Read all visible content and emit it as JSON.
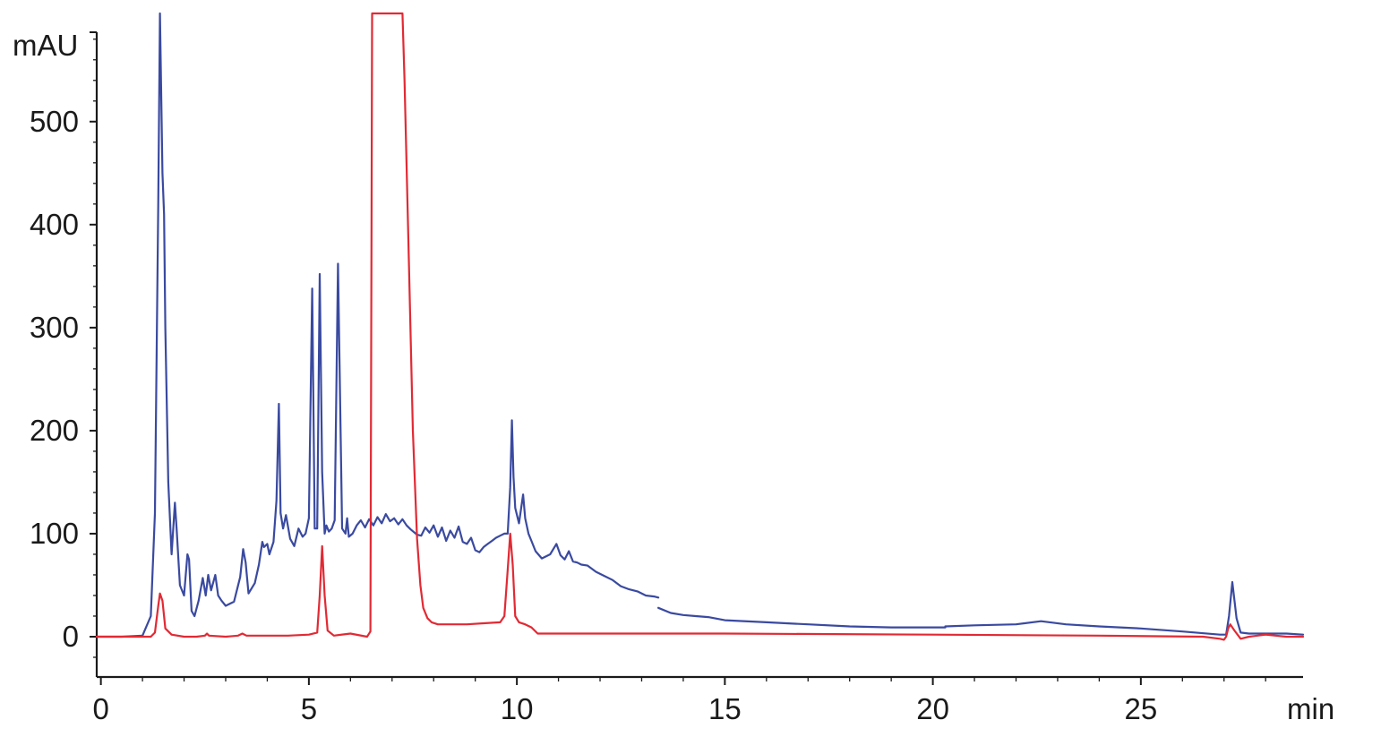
{
  "chart_data": {
    "type": "line",
    "title": "",
    "xlabel": "",
    "ylabel": "",
    "x_unit_label": "min",
    "y_unit_label": "mAU",
    "xlim": [
      -0.1,
      28.9
    ],
    "ylim": [
      -40,
      605
    ],
    "x_ticks": [
      0,
      5,
      10,
      15,
      20,
      25
    ],
    "x_tick_labels": [
      "0",
      "5",
      "10",
      "15",
      "20",
      "25"
    ],
    "y_ticks": [
      0,
      100,
      200,
      300,
      400,
      500
    ],
    "y_tick_labels": [
      "0",
      "100",
      "200",
      "300",
      "400",
      "500"
    ],
    "grid": false,
    "legend": "none",
    "series": [
      {
        "color": "#3a4aa0",
        "segments": [
          {
            "x": [
              -0.1,
              0.5,
              1.0,
              1.2,
              1.3,
              1.38,
              1.42,
              1.48,
              1.52,
              1.55,
              1.62,
              1.7,
              1.78,
              1.82,
              1.9,
              2.0,
              2.08,
              2.12,
              2.18,
              2.25,
              2.35,
              2.45,
              2.52,
              2.58,
              2.65,
              2.75,
              2.82,
              2.9,
              3.0,
              3.2,
              3.35,
              3.42,
              3.48,
              3.55,
              3.7,
              3.8,
              3.88,
              3.92,
              4.0,
              4.05,
              4.15,
              4.22,
              4.28,
              4.32,
              4.38,
              4.45,
              4.55,
              4.65,
              4.75,
              4.85,
              4.92,
              5.0,
              5.08,
              5.14,
              5.2,
              5.26,
              5.32,
              5.38,
              5.42,
              5.48,
              5.55,
              5.62,
              5.7,
              5.8,
              5.88,
              5.92,
              5.96,
              6.05,
              6.15,
              6.25,
              6.35,
              6.45,
              6.55,
              6.65,
              6.75,
              6.85,
              6.95,
              7.05,
              7.15,
              7.25,
              7.35,
              7.45,
              7.6,
              7.7,
              7.8,
              7.9,
              8.0,
              8.1,
              8.2,
              8.3,
              8.4,
              8.5,
              8.6,
              8.7,
              8.8,
              8.9,
              9.0,
              9.1,
              9.2,
              9.3,
              9.4,
              9.5,
              9.6,
              9.7,
              9.78,
              9.84,
              9.88,
              9.92,
              9.96,
              10.05,
              10.15,
              10.2,
              10.28,
              10.35,
              10.45,
              10.6,
              10.8,
              10.95,
              11.05,
              11.15,
              11.25,
              11.35,
              11.45,
              11.55,
              11.7,
              11.9,
              12.1,
              12.3,
              12.5,
              12.7,
              12.9,
              13.1,
              13.3,
              13.4
            ],
            "y": [
              0,
              0,
              1,
              20,
              120,
              420,
              605,
              450,
              410,
              300,
              150,
              80,
              130,
              105,
              50,
              40,
              80,
              75,
              25,
              20,
              35,
              57,
              40,
              60,
              45,
              60,
              40,
              35,
              30,
              34,
              58,
              85,
              72,
              42,
              52,
              70,
              92,
              87,
              90,
              80,
              92,
              132,
              226,
              120,
              105,
              118,
              95,
              88,
              105,
              97,
              100,
              115,
              338,
              105,
              105,
              352,
              160,
              100,
              108,
              102,
              105,
              113,
              362,
              105,
              100,
              115,
              97,
              100,
              108,
              113,
              106,
              114,
              108,
              116,
              110,
              119,
              112,
              115,
              109,
              114,
              108,
              104,
              99,
              98,
              106,
              101,
              108,
              97,
              106,
              93,
              103,
              96,
              107,
              92,
              90,
              96,
              84,
              82,
              87,
              90,
              93,
              96,
              98,
              100,
              100,
              145,
              210,
              155,
              125,
              110,
              138,
              115,
              100,
              93,
              83,
              76,
              80,
              90,
              79,
              75,
              83,
              73,
              72,
              70,
              69,
              63,
              59,
              55,
              49,
              46,
              44,
              40,
              39,
              38
            ]
          },
          {
            "x": [
              13.4,
              13.7,
              14.0,
              14.3,
              14.6,
              15.0,
              16.0,
              17.0,
              18.0,
              19.0,
              20.3
            ],
            "y": [
              28,
              23,
              21,
              20,
              19,
              16,
              14,
              12,
              10,
              9,
              9
            ]
          },
          {
            "x": [
              20.3,
              21.0,
              22.0,
              22.6,
              23.2,
              24.0,
              25.0,
              26.0,
              26.9,
              27.05,
              27.12,
              27.2,
              27.3,
              27.4,
              27.6,
              28.0,
              28.5,
              28.9
            ],
            "y": [
              10,
              11,
              12,
              15,
              12,
              10,
              8,
              5,
              2,
              2,
              20,
              53,
              18,
              4,
              3,
              3,
              3,
              2
            ]
          }
        ]
      },
      {
        "color": "#e12a34",
        "segments": [
          {
            "x": [
              -0.1,
              1.0,
              1.2,
              1.3,
              1.38,
              1.42,
              1.48,
              1.55,
              1.7,
              2.0,
              2.3,
              2.5,
              2.55,
              2.6,
              3.0,
              3.3,
              3.4,
              3.5,
              4.0,
              4.5,
              5.0,
              5.2,
              5.26,
              5.32,
              5.38,
              5.45,
              5.6,
              6.0,
              6.4,
              6.48,
              6.52,
              6.6,
              7.25,
              7.3,
              7.4,
              7.5,
              7.6,
              7.68,
              7.75,
              7.85,
              7.95,
              8.1,
              8.4,
              8.8,
              9.2,
              9.6,
              9.7,
              9.78,
              9.84,
              9.9,
              9.96,
              10.05,
              10.2,
              10.35,
              10.5,
              10.7,
              11.0,
              13.0,
              15.0,
              20.0,
              24.0,
              26.5,
              26.9,
              27.0,
              27.05,
              27.1,
              27.15,
              27.25,
              27.4,
              27.6,
              28.0,
              28.5,
              28.9
            ],
            "y": [
              0,
              0,
              0,
              4,
              30,
              42,
              35,
              8,
              2,
              0,
              0,
              1,
              3,
              1,
              0,
              1,
              3,
              1,
              1,
              1,
              2,
              4,
              40,
              88,
              40,
              6,
              1,
              3,
              0,
              5,
              605,
              605,
              605,
              540,
              370,
              200,
              95,
              50,
              28,
              18,
              14,
              12,
              12,
              12,
              13,
              14,
              20,
              65,
              100,
              70,
              20,
              14,
              12,
              9,
              3,
              3,
              3,
              3,
              3,
              2,
              1,
              0,
              -2,
              -3,
              0,
              8,
              12,
              6,
              -2,
              0,
              2,
              0,
              0
            ]
          }
        ]
      }
    ]
  }
}
